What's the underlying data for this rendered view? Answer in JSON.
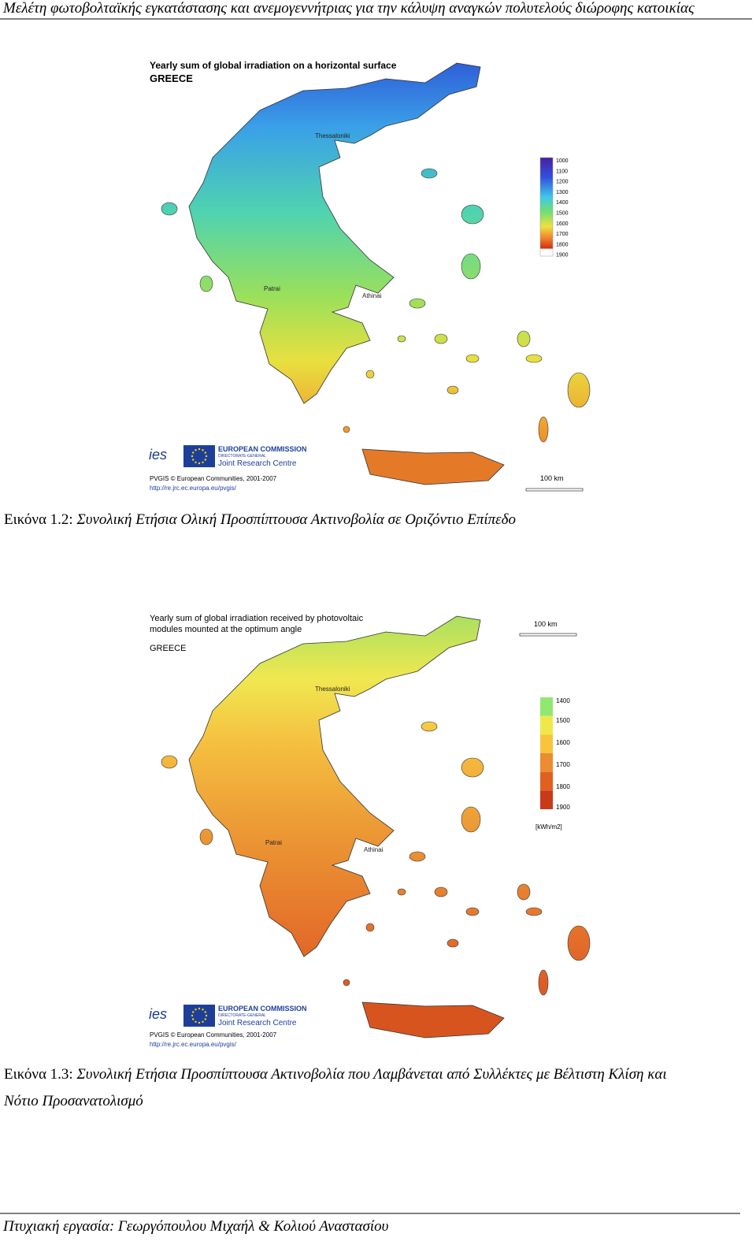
{
  "header": {
    "title": "Μελέτη φωτοβολταϊκής εγκατάστασης και ανεμογεννήτριας για την κάλυψη αναγκών πολυτελούς διώροφης κατοικίας"
  },
  "figures": [
    {
      "map": {
        "title_lines": [
          "Yearly sum of global irradiation on a horizontal surface"
        ],
        "country": "GREECE",
        "cities": [
          "Thessaloniki",
          "Patrai",
          "Athinai"
        ],
        "legend": {
          "values": [
            1000,
            1100,
            1200,
            1300,
            1400,
            1500,
            1600,
            1700,
            1800,
            1900
          ]
        },
        "scale": "100 km",
        "logos": {
          "ies": "ies",
          "ec": "EUROPEAN COMMISSION",
          "dg": "DIRECTORATE-GENERAL",
          "jrc": "Joint Research Centre"
        },
        "credit": "PVGIS © European Communities, 2001-2007",
        "url": "http://re.jrc.ec.europa.eu/pvgis/"
      },
      "caption_label": "Εικόνα 1.2:",
      "caption_lines": [
        "Συνολική Ετήσια Ολική Προσπίπτουσα Ακτινοβολία σε Οριζόντιο Επίπεδο"
      ]
    },
    {
      "map": {
        "title_lines": [
          "Yearly sum of global irradiation received by photovoltaic",
          "modules mounted at the optimum angle"
        ],
        "country": "GREECE",
        "cities": [
          "Thessaloniki",
          "Patrai",
          "Athinai"
        ],
        "legend": {
          "values": [
            1400,
            1500,
            1600,
            1700,
            1800,
            1900
          ],
          "unit": "[kWh/m2]"
        },
        "scale": "100 km",
        "logos": {
          "ies": "ies",
          "ec": "EUROPEAN COMMISSION",
          "dg": "DIRECTORATE-GENERAL",
          "jrc": "Joint Research Centre"
        },
        "credit": "PVGIS © European Communities, 2001-2007",
        "url": "http://re.jrc.ec.europa.eu/pvgis/"
      },
      "caption_label": "Εικόνα 1.3:",
      "caption_lines": [
        "Συνολική Ετήσια Προσπίπτουσα Ακτινοβολία που Λαμβάνεται από  Συλλέκτες με Βέλτιστη Κλίση και",
        "Νότιο Προσανατολισμό"
      ]
    }
  ],
  "footer": {
    "text": "Πτυχιακή εργασία: Γεωργόπουλου Μιχαήλ & Κολιού Αναστασίου"
  }
}
